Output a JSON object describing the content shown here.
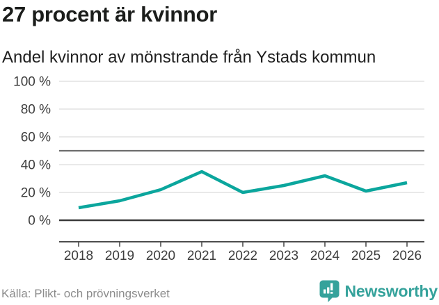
{
  "header": {
    "title": "27 procent är kvinnor",
    "subtitle": "Andel kvinnor av mönstrande från Ystads kommun"
  },
  "chart_data": {
    "type": "line",
    "title": "27 procent är kvinnor",
    "subtitle": "Andel kvinnor av mönstrande från Ystads kommun",
    "x": [
      2018,
      2019,
      2020,
      2021,
      2022,
      2023,
      2024,
      2025,
      2026
    ],
    "series": [
      {
        "name": "Andel kvinnor av mönstrande",
        "values": [
          9,
          14,
          22,
          35,
          20,
          25,
          32,
          21,
          27
        ]
      }
    ],
    "unit": "%",
    "ylim": [
      0,
      100
    ],
    "y_ticks": [
      0,
      20,
      40,
      60,
      80,
      100
    ],
    "y_tick_labels": [
      "0 %",
      "20 %",
      "40 %",
      "60 %",
      "80 %",
      "100 %"
    ],
    "reference_line": 50,
    "grid": "horizontal",
    "legend": "none",
    "colors": {
      "line": "#0ba69d",
      "grid": "#e2e2e2",
      "reference": "#6d6d6d",
      "zero_line": "#3a3a3a",
      "axis": "#4d4d4d",
      "tick_label": "#3d3d3d"
    }
  },
  "footer": {
    "source": "Källa: Plikt- och prövningsverket",
    "brand": "Newsworthy",
    "brand_color": "#35a29b",
    "logo_icon": "bar-chart-exclamation-speech-bubble"
  }
}
